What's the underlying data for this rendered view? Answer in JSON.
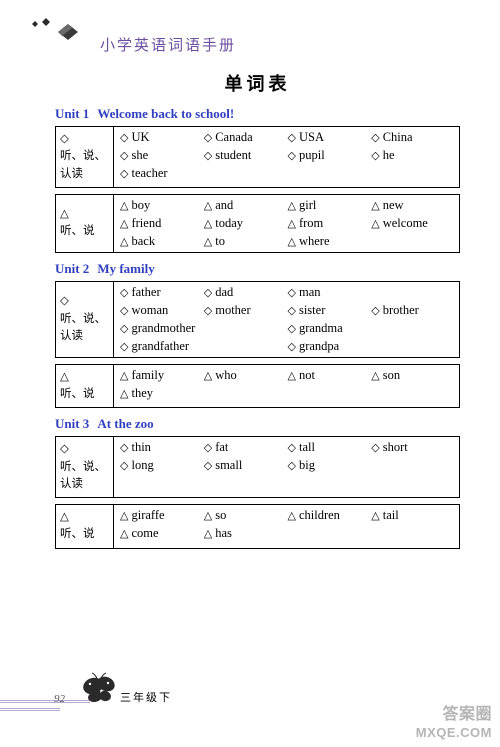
{
  "header": {
    "book_title": "小学英语词语手册",
    "title_color": "#6b4fa0"
  },
  "page_title": "单词表",
  "units": [
    {
      "num": "Unit 1",
      "name": "Welcome back to school!",
      "boxes": [
        {
          "marker_label": "◇",
          "category_lines": [
            "◇",
            "听、说、",
            "认读"
          ],
          "marker": "◇",
          "columns": 4,
          "words": [
            {
              "t": "UK"
            },
            {
              "t": "Canada"
            },
            {
              "t": "USA"
            },
            {
              "t": "China"
            },
            {
              "t": "she"
            },
            {
              "t": "student"
            },
            {
              "t": "pupil"
            },
            {
              "t": "he"
            },
            {
              "t": "teacher"
            }
          ]
        },
        {
          "marker_label": "△",
          "category_lines": [
            "△",
            "听、说"
          ],
          "marker": "△",
          "columns": 4,
          "words": [
            {
              "t": "boy"
            },
            {
              "t": "and"
            },
            {
              "t": "girl"
            },
            {
              "t": "new"
            },
            {
              "t": "friend"
            },
            {
              "t": "today"
            },
            {
              "t": "from"
            },
            {
              "t": "welcome"
            },
            {
              "t": "back"
            },
            {
              "t": "to"
            },
            {
              "t": "where"
            }
          ]
        }
      ]
    },
    {
      "num": "Unit 2",
      "name": "My family",
      "boxes": [
        {
          "marker_label": "◇",
          "category_lines": [
            "◇",
            "听、说、",
            "认读"
          ],
          "marker": "◇",
          "columns": 4,
          "words": [
            {
              "t": "father"
            },
            {
              "t": "dad"
            },
            {
              "t": "man"
            },
            {
              "t": ""
            },
            {
              "t": "woman"
            },
            {
              "t": "mother"
            },
            {
              "t": "sister"
            },
            {
              "t": "brother"
            },
            {
              "t": "grandmother",
              "span": 2
            },
            {
              "t": "grandma",
              "span": 2
            },
            {
              "t": "grandfather",
              "span": 2
            },
            {
              "t": "grandpa",
              "span": 2
            }
          ]
        },
        {
          "marker_label": "△",
          "category_lines": [
            "△",
            "听、说"
          ],
          "marker": "△",
          "columns": 4,
          "words": [
            {
              "t": "family"
            },
            {
              "t": "who"
            },
            {
              "t": "not"
            },
            {
              "t": "son"
            },
            {
              "t": "they"
            }
          ]
        }
      ]
    },
    {
      "num": "Unit 3",
      "name": "At the zoo",
      "boxes": [
        {
          "marker_label": "◇",
          "category_lines": [
            "◇",
            "听、说、",
            "认读"
          ],
          "marker": "◇",
          "columns": 4,
          "words": [
            {
              "t": "thin"
            },
            {
              "t": "fat"
            },
            {
              "t": "tall"
            },
            {
              "t": "short"
            },
            {
              "t": "long"
            },
            {
              "t": "small"
            },
            {
              "t": "big"
            }
          ]
        },
        {
          "marker_label": "△",
          "category_lines": [
            "△",
            "听、说"
          ],
          "marker": "△",
          "columns": 4,
          "words": [
            {
              "t": "giraffe"
            },
            {
              "t": "so"
            },
            {
              "t": "children"
            },
            {
              "t": "tail"
            },
            {
              "t": "come"
            },
            {
              "t": "has"
            }
          ]
        }
      ]
    }
  ],
  "footer": {
    "page_number": "92",
    "grade": "三年级下"
  },
  "watermark": {
    "line1": "答案圈",
    "line2": "MXQE.COM"
  },
  "style": {
    "unit_title_color": "#3040c0",
    "border_color": "#000000",
    "background": "#ffffff",
    "footer_line_color": "#b9a5d4",
    "font_body_size": 12.5,
    "font_unit_size": 13,
    "font_title_size": 18
  }
}
